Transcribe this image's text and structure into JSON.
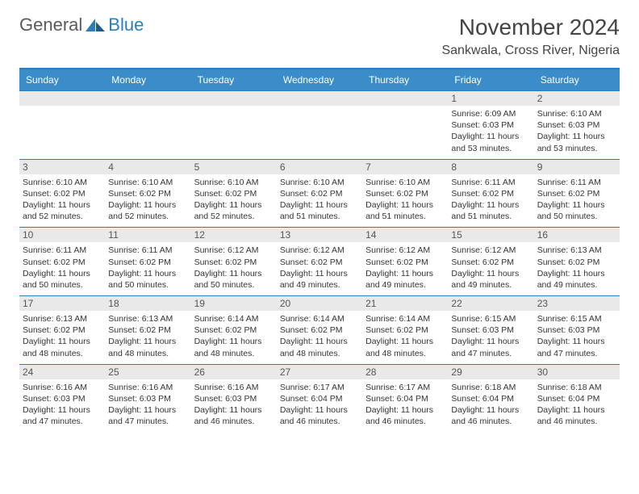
{
  "logo": {
    "text1": "General",
    "text2": "Blue"
  },
  "title": "November 2024",
  "location": "Sankwala, Cross River, Nigeria",
  "colors": {
    "header_bg": "#3b8dc9",
    "border": "#2a7fba",
    "daynum_bg": "#e9e9e9"
  },
  "dayHeaders": [
    "Sunday",
    "Monday",
    "Tuesday",
    "Wednesday",
    "Thursday",
    "Friday",
    "Saturday"
  ],
  "weeks": [
    [
      null,
      null,
      null,
      null,
      null,
      {
        "n": "1",
        "sunrise": "Sunrise: 6:09 AM",
        "sunset": "Sunset: 6:03 PM",
        "daylight": "Daylight: 11 hours and 53 minutes."
      },
      {
        "n": "2",
        "sunrise": "Sunrise: 6:10 AM",
        "sunset": "Sunset: 6:03 PM",
        "daylight": "Daylight: 11 hours and 53 minutes."
      }
    ],
    [
      {
        "n": "3",
        "sunrise": "Sunrise: 6:10 AM",
        "sunset": "Sunset: 6:02 PM",
        "daylight": "Daylight: 11 hours and 52 minutes."
      },
      {
        "n": "4",
        "sunrise": "Sunrise: 6:10 AM",
        "sunset": "Sunset: 6:02 PM",
        "daylight": "Daylight: 11 hours and 52 minutes."
      },
      {
        "n": "5",
        "sunrise": "Sunrise: 6:10 AM",
        "sunset": "Sunset: 6:02 PM",
        "daylight": "Daylight: 11 hours and 52 minutes."
      },
      {
        "n": "6",
        "sunrise": "Sunrise: 6:10 AM",
        "sunset": "Sunset: 6:02 PM",
        "daylight": "Daylight: 11 hours and 51 minutes."
      },
      {
        "n": "7",
        "sunrise": "Sunrise: 6:10 AM",
        "sunset": "Sunset: 6:02 PM",
        "daylight": "Daylight: 11 hours and 51 minutes."
      },
      {
        "n": "8",
        "sunrise": "Sunrise: 6:11 AM",
        "sunset": "Sunset: 6:02 PM",
        "daylight": "Daylight: 11 hours and 51 minutes."
      },
      {
        "n": "9",
        "sunrise": "Sunrise: 6:11 AM",
        "sunset": "Sunset: 6:02 PM",
        "daylight": "Daylight: 11 hours and 50 minutes."
      }
    ],
    [
      {
        "n": "10",
        "sunrise": "Sunrise: 6:11 AM",
        "sunset": "Sunset: 6:02 PM",
        "daylight": "Daylight: 11 hours and 50 minutes."
      },
      {
        "n": "11",
        "sunrise": "Sunrise: 6:11 AM",
        "sunset": "Sunset: 6:02 PM",
        "daylight": "Daylight: 11 hours and 50 minutes."
      },
      {
        "n": "12",
        "sunrise": "Sunrise: 6:12 AM",
        "sunset": "Sunset: 6:02 PM",
        "daylight": "Daylight: 11 hours and 50 minutes."
      },
      {
        "n": "13",
        "sunrise": "Sunrise: 6:12 AM",
        "sunset": "Sunset: 6:02 PM",
        "daylight": "Daylight: 11 hours and 49 minutes."
      },
      {
        "n": "14",
        "sunrise": "Sunrise: 6:12 AM",
        "sunset": "Sunset: 6:02 PM",
        "daylight": "Daylight: 11 hours and 49 minutes."
      },
      {
        "n": "15",
        "sunrise": "Sunrise: 6:12 AM",
        "sunset": "Sunset: 6:02 PM",
        "daylight": "Daylight: 11 hours and 49 minutes."
      },
      {
        "n": "16",
        "sunrise": "Sunrise: 6:13 AM",
        "sunset": "Sunset: 6:02 PM",
        "daylight": "Daylight: 11 hours and 49 minutes."
      }
    ],
    [
      {
        "n": "17",
        "sunrise": "Sunrise: 6:13 AM",
        "sunset": "Sunset: 6:02 PM",
        "daylight": "Daylight: 11 hours and 48 minutes."
      },
      {
        "n": "18",
        "sunrise": "Sunrise: 6:13 AM",
        "sunset": "Sunset: 6:02 PM",
        "daylight": "Daylight: 11 hours and 48 minutes."
      },
      {
        "n": "19",
        "sunrise": "Sunrise: 6:14 AM",
        "sunset": "Sunset: 6:02 PM",
        "daylight": "Daylight: 11 hours and 48 minutes."
      },
      {
        "n": "20",
        "sunrise": "Sunrise: 6:14 AM",
        "sunset": "Sunset: 6:02 PM",
        "daylight": "Daylight: 11 hours and 48 minutes."
      },
      {
        "n": "21",
        "sunrise": "Sunrise: 6:14 AM",
        "sunset": "Sunset: 6:02 PM",
        "daylight": "Daylight: 11 hours and 48 minutes."
      },
      {
        "n": "22",
        "sunrise": "Sunrise: 6:15 AM",
        "sunset": "Sunset: 6:03 PM",
        "daylight": "Daylight: 11 hours and 47 minutes."
      },
      {
        "n": "23",
        "sunrise": "Sunrise: 6:15 AM",
        "sunset": "Sunset: 6:03 PM",
        "daylight": "Daylight: 11 hours and 47 minutes."
      }
    ],
    [
      {
        "n": "24",
        "sunrise": "Sunrise: 6:16 AM",
        "sunset": "Sunset: 6:03 PM",
        "daylight": "Daylight: 11 hours and 47 minutes."
      },
      {
        "n": "25",
        "sunrise": "Sunrise: 6:16 AM",
        "sunset": "Sunset: 6:03 PM",
        "daylight": "Daylight: 11 hours and 47 minutes."
      },
      {
        "n": "26",
        "sunrise": "Sunrise: 6:16 AM",
        "sunset": "Sunset: 6:03 PM",
        "daylight": "Daylight: 11 hours and 46 minutes."
      },
      {
        "n": "27",
        "sunrise": "Sunrise: 6:17 AM",
        "sunset": "Sunset: 6:04 PM",
        "daylight": "Daylight: 11 hours and 46 minutes."
      },
      {
        "n": "28",
        "sunrise": "Sunrise: 6:17 AM",
        "sunset": "Sunset: 6:04 PM",
        "daylight": "Daylight: 11 hours and 46 minutes."
      },
      {
        "n": "29",
        "sunrise": "Sunrise: 6:18 AM",
        "sunset": "Sunset: 6:04 PM",
        "daylight": "Daylight: 11 hours and 46 minutes."
      },
      {
        "n": "30",
        "sunrise": "Sunrise: 6:18 AM",
        "sunset": "Sunset: 6:04 PM",
        "daylight": "Daylight: 11 hours and 46 minutes."
      }
    ]
  ]
}
